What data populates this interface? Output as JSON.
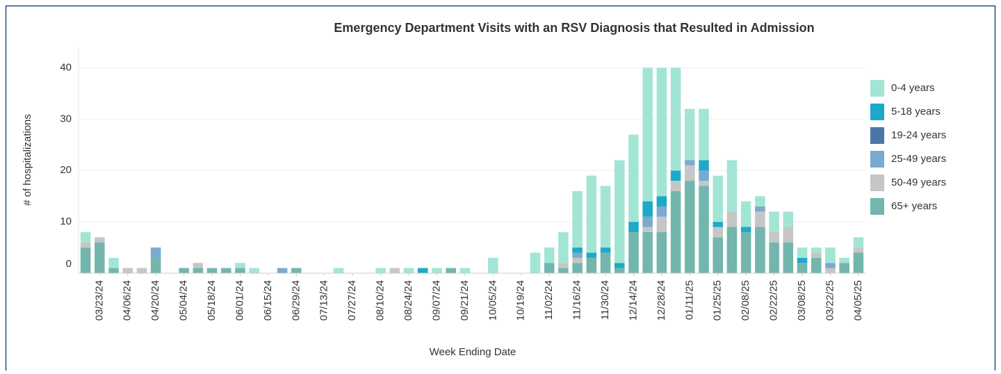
{
  "chart_data": {
    "type": "stacked_bar",
    "title": "Emergency Department Visits with an RSV Diagnosis that Resulted in Admission",
    "x_label": "Week Ending Date",
    "y_label": "# of hospitalizations",
    "categories": [
      null,
      "03/23/24",
      null,
      "04/06/24",
      null,
      "04/20/24",
      null,
      "05/04/24",
      null,
      "05/18/24",
      null,
      "06/01/24",
      null,
      "06/15/24",
      null,
      "06/29/24",
      null,
      "07/13/24",
      null,
      "07/27/24",
      null,
      "08/10/24",
      null,
      "08/24/24",
      null,
      "09/07/24",
      null,
      "09/21/24",
      null,
      "10/05/24",
      null,
      "10/19/24",
      null,
      "11/02/24",
      null,
      "11/16/24",
      null,
      "11/30/24",
      null,
      "12/14/24",
      null,
      "12/28/24",
      null,
      "01/11/25",
      null,
      "01/25/25",
      null,
      "02/08/25",
      null,
      "02/22/25",
      null,
      "03/08/25",
      null,
      "03/22/25",
      null,
      "04/05/25"
    ],
    "series": [
      {
        "name": "65+ years",
        "color": "#72b6ad",
        "values": [
          5,
          6,
          1,
          0,
          0,
          3,
          0,
          1,
          1,
          1,
          1,
          1,
          0,
          0,
          0,
          1,
          0,
          0,
          0,
          0,
          0,
          0,
          0,
          0,
          0,
          0,
          1,
          0,
          0,
          0,
          0,
          0,
          0,
          2,
          1,
          2,
          3,
          4,
          1,
          8,
          8,
          8,
          16,
          18,
          17,
          7,
          9,
          8,
          9,
          6,
          6,
          2,
          3,
          0,
          2,
          4
        ]
      },
      {
        "name": "50-49 years",
        "color": "#c6c6c6",
        "values": [
          1,
          1,
          0,
          1,
          1,
          0,
          0,
          0,
          1,
          0,
          0,
          0,
          0,
          0,
          0,
          0,
          0,
          0,
          0,
          0,
          0,
          0,
          1,
          0,
          0,
          0,
          0,
          0,
          0,
          0,
          0,
          0,
          0,
          0,
          1,
          1,
          0,
          0,
          0,
          0,
          1,
          3,
          2,
          3,
          1,
          2,
          3,
          0,
          3,
          2,
          3,
          0,
          1,
          1,
          0,
          1
        ]
      },
      {
        "name": "25-49 years",
        "color": "#7aaad0",
        "values": [
          0,
          0,
          0,
          0,
          0,
          2,
          0,
          0,
          0,
          0,
          0,
          0,
          0,
          0,
          1,
          0,
          0,
          0,
          0,
          0,
          0,
          0,
          0,
          0,
          0,
          0,
          0,
          0,
          0,
          0,
          0,
          0,
          0,
          0,
          0,
          1,
          0,
          0,
          0,
          0,
          2,
          2,
          0,
          1,
          2,
          0,
          0,
          0,
          1,
          0,
          0,
          0,
          0,
          1,
          0,
          0
        ]
      },
      {
        "name": "19-24 years",
        "color": "#4a77a8",
        "values": [
          0,
          0,
          0,
          0,
          0,
          0,
          0,
          0,
          0,
          0,
          0,
          0,
          0,
          0,
          0,
          0,
          0,
          0,
          0,
          0,
          0,
          0,
          0,
          0,
          0,
          0,
          0,
          0,
          0,
          0,
          0,
          0,
          0,
          0,
          0,
          0,
          0,
          0,
          0,
          0,
          0,
          0,
          0,
          0,
          0,
          0,
          0,
          0,
          0,
          0,
          0,
          0,
          0,
          0,
          0,
          0
        ]
      },
      {
        "name": "5-18 years",
        "color": "#1ea9c8",
        "values": [
          0,
          0,
          0,
          0,
          0,
          0,
          0,
          0,
          0,
          0,
          0,
          0,
          0,
          0,
          0,
          0,
          0,
          0,
          0,
          0,
          0,
          0,
          0,
          0,
          1,
          0,
          0,
          0,
          0,
          0,
          0,
          0,
          0,
          0,
          0,
          1,
          1,
          1,
          1,
          2,
          3,
          2,
          2,
          0,
          2,
          1,
          0,
          1,
          0,
          0,
          0,
          1,
          0,
          0,
          0,
          0
        ]
      },
      {
        "name": "0-4 years",
        "color": "#a3e5d4",
        "values": [
          2,
          0,
          2,
          0,
          0,
          0,
          0,
          0,
          0,
          0,
          0,
          1,
          1,
          0,
          0,
          0,
          0,
          0,
          1,
          0,
          0,
          1,
          0,
          1,
          0,
          1,
          0,
          1,
          0,
          3,
          0,
          0,
          4,
          3,
          6,
          11,
          15,
          12,
          20,
          17,
          26,
          25,
          20,
          10,
          10,
          9,
          10,
          5,
          2,
          4,
          3,
          2,
          1,
          3,
          1,
          2
        ]
      }
    ],
    "legend_order": [
      5,
      4,
      3,
      2,
      1,
      0
    ],
    "ylim": [
      0,
      44
    ],
    "yticks": [
      0,
      10,
      20,
      30,
      40
    ],
    "grid": true,
    "legend": "right"
  }
}
